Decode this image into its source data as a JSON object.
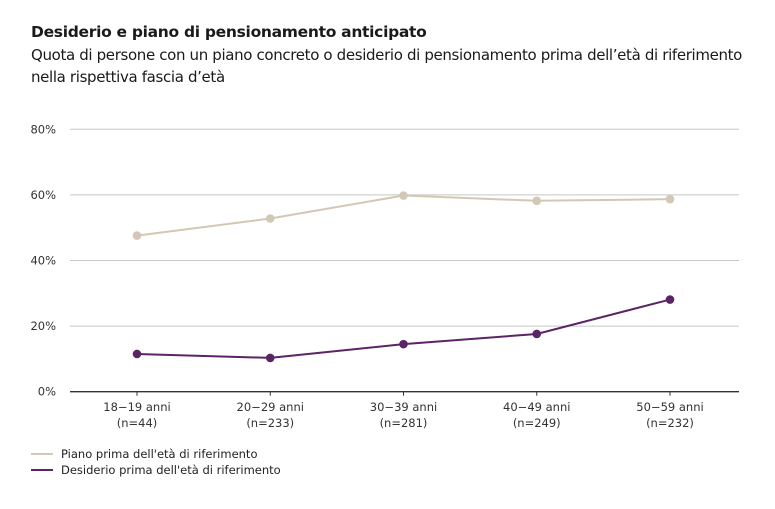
{
  "header": {
    "title": "Desiderio e piano di pensionamento anticipato",
    "subtitle": "Quota di persone con un piano concreto o desiderio di pensionamento prima dell’età di riferimento nella rispettiva fascia d’età"
  },
  "chart_data": {
    "type": "line",
    "title": "Desiderio e piano di pensionamento anticipato",
    "subtitle": "Quota di persone con un piano concreto o desiderio di pensionamento prima dell’età di riferimento nella rispettiva fascia d’età",
    "xlabel": "",
    "ylabel": "",
    "ylim": [
      0,
      80
    ],
    "yticks": [
      0,
      20,
      40,
      60,
      80
    ],
    "ytick_labels": [
      "0%",
      "20%",
      "40%",
      "60%",
      "80%"
    ],
    "grid": true,
    "categories": [
      {
        "line1": "18−19 anni",
        "line2": "(n=44)"
      },
      {
        "line1": "20−29 anni",
        "line2": "(n=233)"
      },
      {
        "line1": "30−39 anni",
        "line2": "(n=281)"
      },
      {
        "line1": "40−49 anni",
        "line2": "(n=249)"
      },
      {
        "line1": "50−59 anni",
        "line2": "(n=232)"
      }
    ],
    "series": [
      {
        "name": "Piano prima dell'età di riferimento",
        "color": "#d3c7b6",
        "values": [
          47.6,
          52.8,
          59.8,
          58.2,
          58.7
        ]
      },
      {
        "name": "Desiderio prima dell'età di riferimento",
        "color": "#5b2466",
        "values": [
          11.5,
          10.3,
          14.5,
          17.6,
          28.1
        ]
      }
    ],
    "legend_position": "bottom-left"
  },
  "colors": {
    "grid": "#c8c8c8",
    "axis": "#333333"
  }
}
